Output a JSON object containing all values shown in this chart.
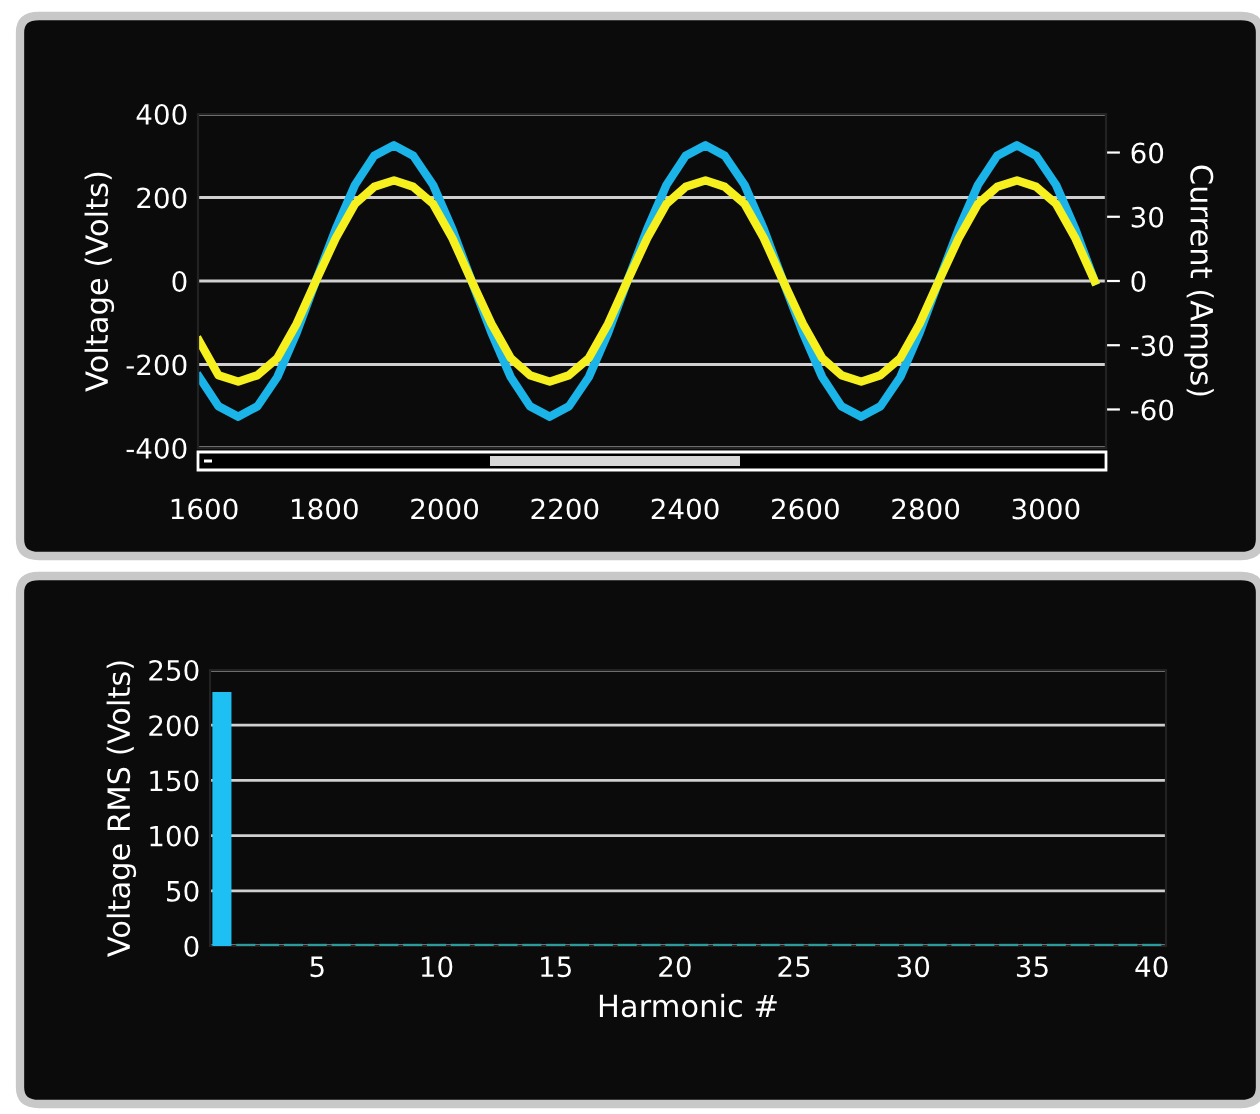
{
  "chart_data": [
    {
      "type": "line",
      "ylabel": "Voltage (Volts)",
      "y2label": "Current (Amps)",
      "x": [
        1592,
        1624,
        1657,
        1689,
        1722,
        1754,
        1786,
        1819,
        1851,
        1883,
        1916,
        1948,
        1981,
        2013,
        2045,
        2078,
        2110,
        2142,
        2175,
        2207,
        2240,
        2272,
        2304,
        2337,
        2369,
        2401,
        2434,
        2466,
        2499,
        2531,
        2563,
        2596,
        2628,
        2660,
        2693,
        2725,
        2758,
        2790,
        2822,
        2855,
        2887,
        2919,
        2952,
        2984,
        3017,
        3049,
        3081
      ],
      "series": [
        {
          "type": "line",
          "axis": "y",
          "color": "#1ab4e8",
          "values": [
            -230,
            -300,
            -325,
            -300,
            -230,
            -124,
            0,
            124,
            230,
            300,
            325,
            300,
            230,
            124,
            0,
            -124,
            -230,
            -300,
            -325,
            -300,
            -230,
            -124,
            0,
            124,
            230,
            300,
            325,
            300,
            230,
            124,
            0,
            -124,
            -230,
            -300,
            -325,
            -300,
            -230,
            -124,
            0,
            124,
            230,
            300,
            325,
            300,
            230,
            124,
            0
          ]
        },
        {
          "type": "line",
          "axis": "y2",
          "color": "#f5f01e",
          "values": [
            -28,
            -44,
            -47,
            -44,
            -36,
            -20,
            0,
            20,
            36,
            44,
            47,
            44,
            36,
            20,
            0,
            -20,
            -36,
            -44,
            -47,
            -44,
            -36,
            -20,
            0,
            20,
            36,
            44,
            47,
            44,
            36,
            20,
            0,
            -20,
            -36,
            -44,
            -47,
            -44,
            -36,
            -20,
            0,
            20,
            36,
            44,
            47,
            44,
            36,
            20,
            0
          ]
        }
      ],
      "xlim": [
        1590,
        3100
      ],
      "xticks": [
        1600,
        1800,
        2000,
        2200,
        2400,
        2600,
        2800,
        3000
      ],
      "ylim": [
        -400,
        400
      ],
      "yticks": [
        -400,
        -200,
        0,
        200,
        400
      ],
      "y2lim": [
        -78,
        78
      ],
      "y2ticks": [
        -60,
        -30,
        0,
        30,
        60
      ],
      "grid": "y",
      "legend": false,
      "marker": "none",
      "line_style": "solid"
    },
    {
      "type": "bar",
      "xlabel": "Harmonic #",
      "ylabel": "Voltage RMS (Volts)",
      "x": [
        1,
        2,
        3,
        4,
        5,
        6,
        7,
        8,
        9,
        10,
        11,
        12,
        13,
        14,
        15,
        16,
        17,
        18,
        19,
        20,
        21,
        22,
        23,
        24,
        25,
        26,
        27,
        28,
        29,
        30,
        31,
        32,
        33,
        34,
        35,
        36,
        37,
        38,
        39,
        40
      ],
      "values": [
        230,
        2,
        2,
        2,
        2,
        2,
        2,
        2,
        2,
        2,
        2,
        2,
        2,
        2,
        2,
        2,
        2,
        2,
        2,
        2,
        2,
        2,
        2,
        2,
        2,
        2,
        2,
        2,
        2,
        2,
        2,
        2,
        2,
        2,
        2,
        2,
        2,
        2,
        2,
        2
      ],
      "colors": [
        "#1ec0f4",
        "#2a9a9a",
        "#2a9a9a",
        "#2a9a9a",
        "#2a9a9a",
        "#2a9a9a",
        "#2a9a9a",
        "#2a9a9a",
        "#2a9a9a",
        "#2a9a9a",
        "#2a9a9a",
        "#2a9a9a",
        "#2a9a9a",
        "#2a9a9a",
        "#2a9a9a",
        "#2a9a9a",
        "#2a9a9a",
        "#2a9a9a",
        "#2a9a9a",
        "#2a9a9a",
        "#2a9a9a",
        "#2a9a9a",
        "#2a9a9a",
        "#2a9a9a",
        "#2a9a9a",
        "#2a9a9a",
        "#2a9a9a",
        "#2a9a9a",
        "#2a9a9a",
        "#2a9a9a",
        "#2a9a9a",
        "#2a9a9a",
        "#2a9a9a",
        "#2a9a9a",
        "#2a9a9a",
        "#2a9a9a",
        "#2a9a9a",
        "#2a9a9a",
        "#2a9a9a",
        "#2a9a9a"
      ],
      "xlim": [
        0.5,
        40.6
      ],
      "xticks": [
        5,
        10,
        15,
        20,
        25,
        30,
        35,
        40
      ],
      "ylim": [
        0,
        250
      ],
      "yticks": [
        0,
        50,
        100,
        150,
        200,
        250
      ],
      "grid": "y",
      "legend": false
    }
  ]
}
